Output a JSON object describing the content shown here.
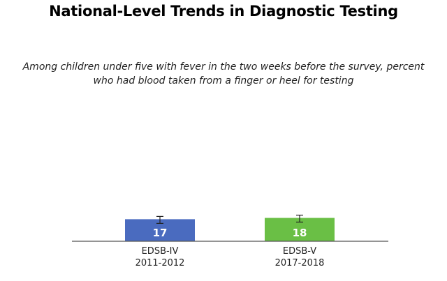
{
  "chart_data": {
    "type": "bar",
    "title": "National-Level Trends in Diagnostic Testing",
    "subtitle": [
      "Among children under five with fever in the two weeks before the survey, percent",
      "who had blood taken from a finger or heel for testing"
    ],
    "categories": [
      [
        "EDSB-IV",
        "2011-2012"
      ],
      [
        "EDSB-V",
        "2017-2018"
      ]
    ],
    "values": [
      17,
      18
    ],
    "value_labels": [
      "17",
      "18"
    ],
    "colors": [
      "#4a6bbf",
      "#6abf45"
    ],
    "error_bars": true,
    "ylim": [
      0,
      100
    ],
    "xlabel": "",
    "ylabel": "",
    "grid": false,
    "legend": "none"
  }
}
